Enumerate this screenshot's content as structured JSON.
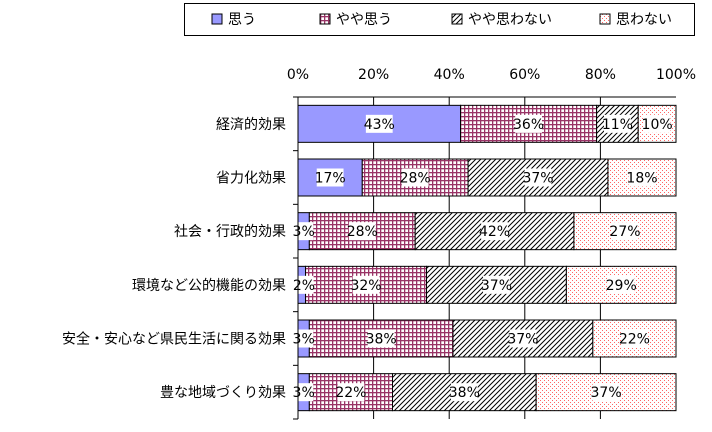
{
  "chart_data": {
    "type": "bar",
    "orientation": "horizontal",
    "stacked": true,
    "percent_stacked": true,
    "categories": [
      "経済的効果",
      "省力化効果",
      "社会・行政的効果",
      "環境など公的機能の効果",
      "安全・安心など県民生活に関る効果",
      "豊な地域づくり効果"
    ],
    "series": [
      {
        "name": "思う",
        "values": [
          43,
          17,
          3,
          2,
          3,
          3
        ],
        "color": "#9999ff",
        "pattern": "solid"
      },
      {
        "name": "やや思う",
        "values": [
          36,
          28,
          28,
          32,
          38,
          22
        ],
        "color": "#993366",
        "pattern": "grid"
      },
      {
        "name": "やや思わない",
        "values": [
          11,
          37,
          42,
          37,
          37,
          38
        ],
        "color": "#000000",
        "pattern": "diagonal"
      },
      {
        "name": "思わない",
        "values": [
          10,
          18,
          27,
          29,
          22,
          37
        ],
        "color": "#ff6666",
        "pattern": "dots"
      }
    ],
    "xlim": [
      0,
      100
    ],
    "x_ticks": [
      "0%",
      "20%",
      "40%",
      "60%",
      "80%",
      "100%"
    ],
    "data_label_suffix": "%",
    "grid": true,
    "legend_position": "top"
  }
}
